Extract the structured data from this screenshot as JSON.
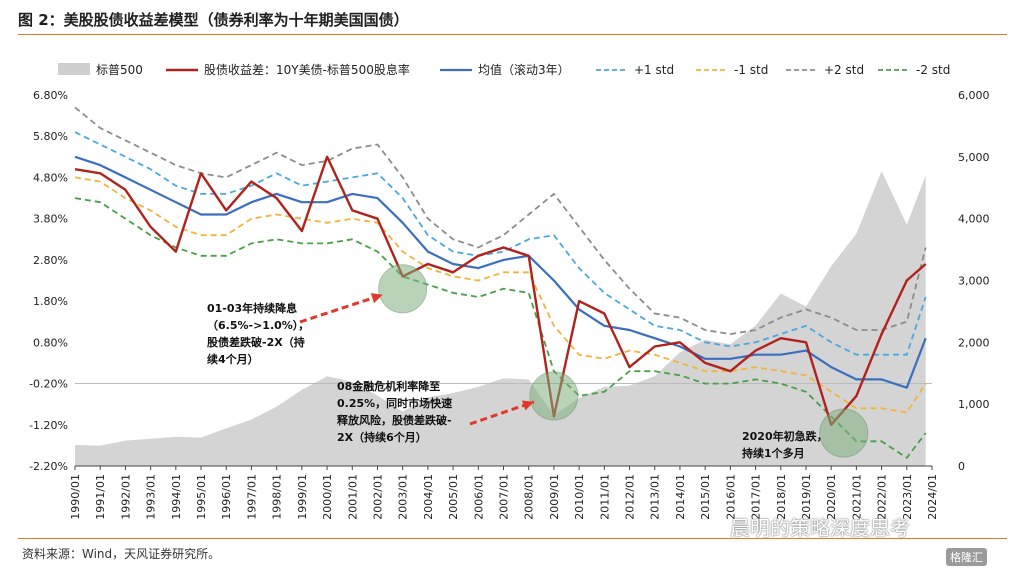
{
  "header": {
    "title": "图 2：美股股债收益差模型（债券利率为十年期美国国债）"
  },
  "footer": {
    "source": "资料来源：Wind，天风证券研究所。"
  },
  "watermark": {
    "text": "晨明的策略深度思考",
    "badge": "格隆汇"
  },
  "colors": {
    "spx": "#cfcfcf",
    "gap": "#b0221c",
    "mean": "#3a6fc0",
    "p1": "#4aa8e0",
    "m1": "#f0b43a",
    "p2": "#8c8c8c",
    "m2": "#47a047",
    "arrow": "#e0392b",
    "circle": "#7fb07f"
  },
  "chart_data": {
    "type": "line",
    "title": "",
    "left_axis": {
      "ticks": [
        6.8,
        5.8,
        4.8,
        3.8,
        2.8,
        1.8,
        0.8,
        -0.2,
        -1.2,
        -2.2
      ],
      "tick_labels": [
        "6.80%",
        "5.80%",
        "4.80%",
        "3.80%",
        "2.80%",
        "1.80%",
        "0.80%",
        "-0.20%",
        "-1.20%",
        "-2.20%"
      ],
      "ylim": [
        -2.2,
        6.8
      ]
    },
    "right_axis": {
      "ticks": [
        6000,
        5000,
        4000,
        3000,
        2000,
        1000,
        0
      ],
      "tick_labels": [
        "6,000",
        "5,000",
        "4,000",
        "3,000",
        "2,000",
        "1,000",
        "0"
      ],
      "ylim": [
        0,
        6000
      ]
    },
    "x_labels": [
      "1990/01",
      "1991/01",
      "1992/01",
      "1993/01",
      "1994/01",
      "1995/01",
      "1996/01",
      "1997/01",
      "1998/01",
      "1999/01",
      "2000/01",
      "2001/01",
      "2002/01",
      "2003/01",
      "2004/01",
      "2005/01",
      "2006/01",
      "2007/01",
      "2008/01",
      "2009/01",
      "2010/01",
      "2011/01",
      "2012/01",
      "2013/01",
      "2014/01",
      "2015/01",
      "2016/01",
      "2017/01",
      "2018/01",
      "2019/01",
      "2020/01",
      "2021/01",
      "2022/01",
      "2023/01",
      "2024/01"
    ],
    "xlim": [
      1990.0,
      2024.0
    ],
    "legend": [
      "标普500",
      "股债收益差：10Y美债-标普500股息率",
      "均值（滚动3年）",
      "+1 std",
      "-1 std",
      "+2 std",
      "-2 std"
    ],
    "years": [
      1990,
      1991,
      1992,
      1993,
      1994,
      1995,
      1996,
      1997,
      1998,
      1999,
      2000,
      2001,
      2002,
      2003,
      2004,
      2005,
      2006,
      2007,
      2008,
      2009,
      2010,
      2011,
      2012,
      2013,
      2014,
      2015,
      2016,
      2017,
      2018,
      2019,
      2020,
      2021,
      2022,
      2023,
      2023.75
    ],
    "series": [
      {
        "name": "标普500",
        "axis": "right",
        "values": [
          340,
          330,
          410,
          440,
          470,
          460,
          610,
          750,
          960,
          1230,
          1450,
          1360,
          1140,
          880,
          1110,
          1180,
          1280,
          1420,
          1400,
          820,
          1100,
          1280,
          1300,
          1450,
          1840,
          2040,
          1970,
          2270,
          2790,
          2580,
          3230,
          3760,
          4770,
          3900,
          4700
        ]
      },
      {
        "name": "股债收益差：10Y美债-标普500股息率",
        "axis": "left",
        "values": [
          5.0,
          4.9,
          4.5,
          3.6,
          3.0,
          4.9,
          4.0,
          4.7,
          4.3,
          3.5,
          5.3,
          4.0,
          3.8,
          2.4,
          2.7,
          2.5,
          2.9,
          3.1,
          2.9,
          -1.0,
          1.8,
          1.5,
          0.2,
          0.7,
          0.8,
          0.3,
          0.1,
          0.6,
          0.9,
          0.8,
          -1.2,
          -0.5,
          1.0,
          2.3,
          2.7
        ]
      },
      {
        "name": "均值（滚动3年）",
        "axis": "left",
        "values": [
          5.3,
          5.1,
          4.8,
          4.5,
          4.2,
          3.9,
          3.9,
          4.2,
          4.4,
          4.2,
          4.2,
          4.4,
          4.3,
          3.7,
          3.0,
          2.7,
          2.6,
          2.8,
          2.9,
          2.3,
          1.6,
          1.2,
          1.1,
          0.9,
          0.7,
          0.4,
          0.4,
          0.5,
          0.5,
          0.6,
          0.2,
          -0.1,
          -0.1,
          -0.3,
          0.9
        ]
      },
      {
        "name": "+1 std",
        "axis": "left",
        "values": [
          5.9,
          5.6,
          5.3,
          5.0,
          4.6,
          4.4,
          4.4,
          4.6,
          4.9,
          4.6,
          4.7,
          4.8,
          4.9,
          4.3,
          3.4,
          3.0,
          2.9,
          3.0,
          3.3,
          3.4,
          2.6,
          2.0,
          1.6,
          1.2,
          1.1,
          0.8,
          0.7,
          0.8,
          1.0,
          1.2,
          0.8,
          0.5,
          0.5,
          0.5,
          1.9
        ]
      },
      {
        "name": "-1 std",
        "axis": "left",
        "values": [
          4.8,
          4.7,
          4.3,
          4.0,
          3.6,
          3.4,
          3.4,
          3.8,
          3.9,
          3.8,
          3.7,
          3.8,
          3.7,
          3.0,
          2.6,
          2.4,
          2.3,
          2.5,
          2.5,
          1.2,
          0.5,
          0.4,
          0.6,
          0.5,
          0.3,
          0.1,
          0.1,
          0.2,
          0.1,
          0.0,
          -0.4,
          -0.8,
          -0.8,
          -0.9,
          -0.2
        ]
      },
      {
        "name": "+2 std",
        "axis": "left",
        "values": [
          6.5,
          6.0,
          5.7,
          5.4,
          5.1,
          4.9,
          4.8,
          5.1,
          5.4,
          5.1,
          5.2,
          5.5,
          5.6,
          4.8,
          3.8,
          3.3,
          3.1,
          3.4,
          3.9,
          4.4,
          3.6,
          2.8,
          2.1,
          1.5,
          1.4,
          1.1,
          1.0,
          1.1,
          1.4,
          1.6,
          1.4,
          1.1,
          1.1,
          1.3,
          3.1
        ]
      },
      {
        "name": "-2 std",
        "axis": "left",
        "values": [
          4.3,
          4.2,
          3.8,
          3.4,
          3.1,
          2.9,
          2.9,
          3.2,
          3.3,
          3.2,
          3.2,
          3.3,
          3.0,
          2.4,
          2.2,
          2.0,
          1.9,
          2.1,
          2.0,
          0.1,
          -0.5,
          -0.4,
          0.1,
          0.1,
          0.0,
          -0.2,
          -0.2,
          -0.1,
          -0.2,
          -0.4,
          -1.0,
          -1.6,
          -1.6,
          -2.0,
          -1.4
        ]
      }
    ],
    "annotations": [
      {
        "lines": [
          "01-03年持续降息",
          "（6.5%->1.0%），",
          "股债差跌破-2X（持",
          "续4个月）"
        ],
        "circle_x": 2003.0,
        "circle_y": 2.1
      },
      {
        "lines": [
          "08金融危机利率降至",
          "0.25%，同时市场快速",
          "释放风险，股债差跌破-",
          "2X（持续6个月）"
        ],
        "circle_x": 2009.0,
        "circle_y": -0.5
      },
      {
        "lines": [
          "2020年初急跌，",
          "持续1个多月"
        ],
        "circle_x": 2020.5,
        "circle_y": -1.4
      }
    ]
  }
}
